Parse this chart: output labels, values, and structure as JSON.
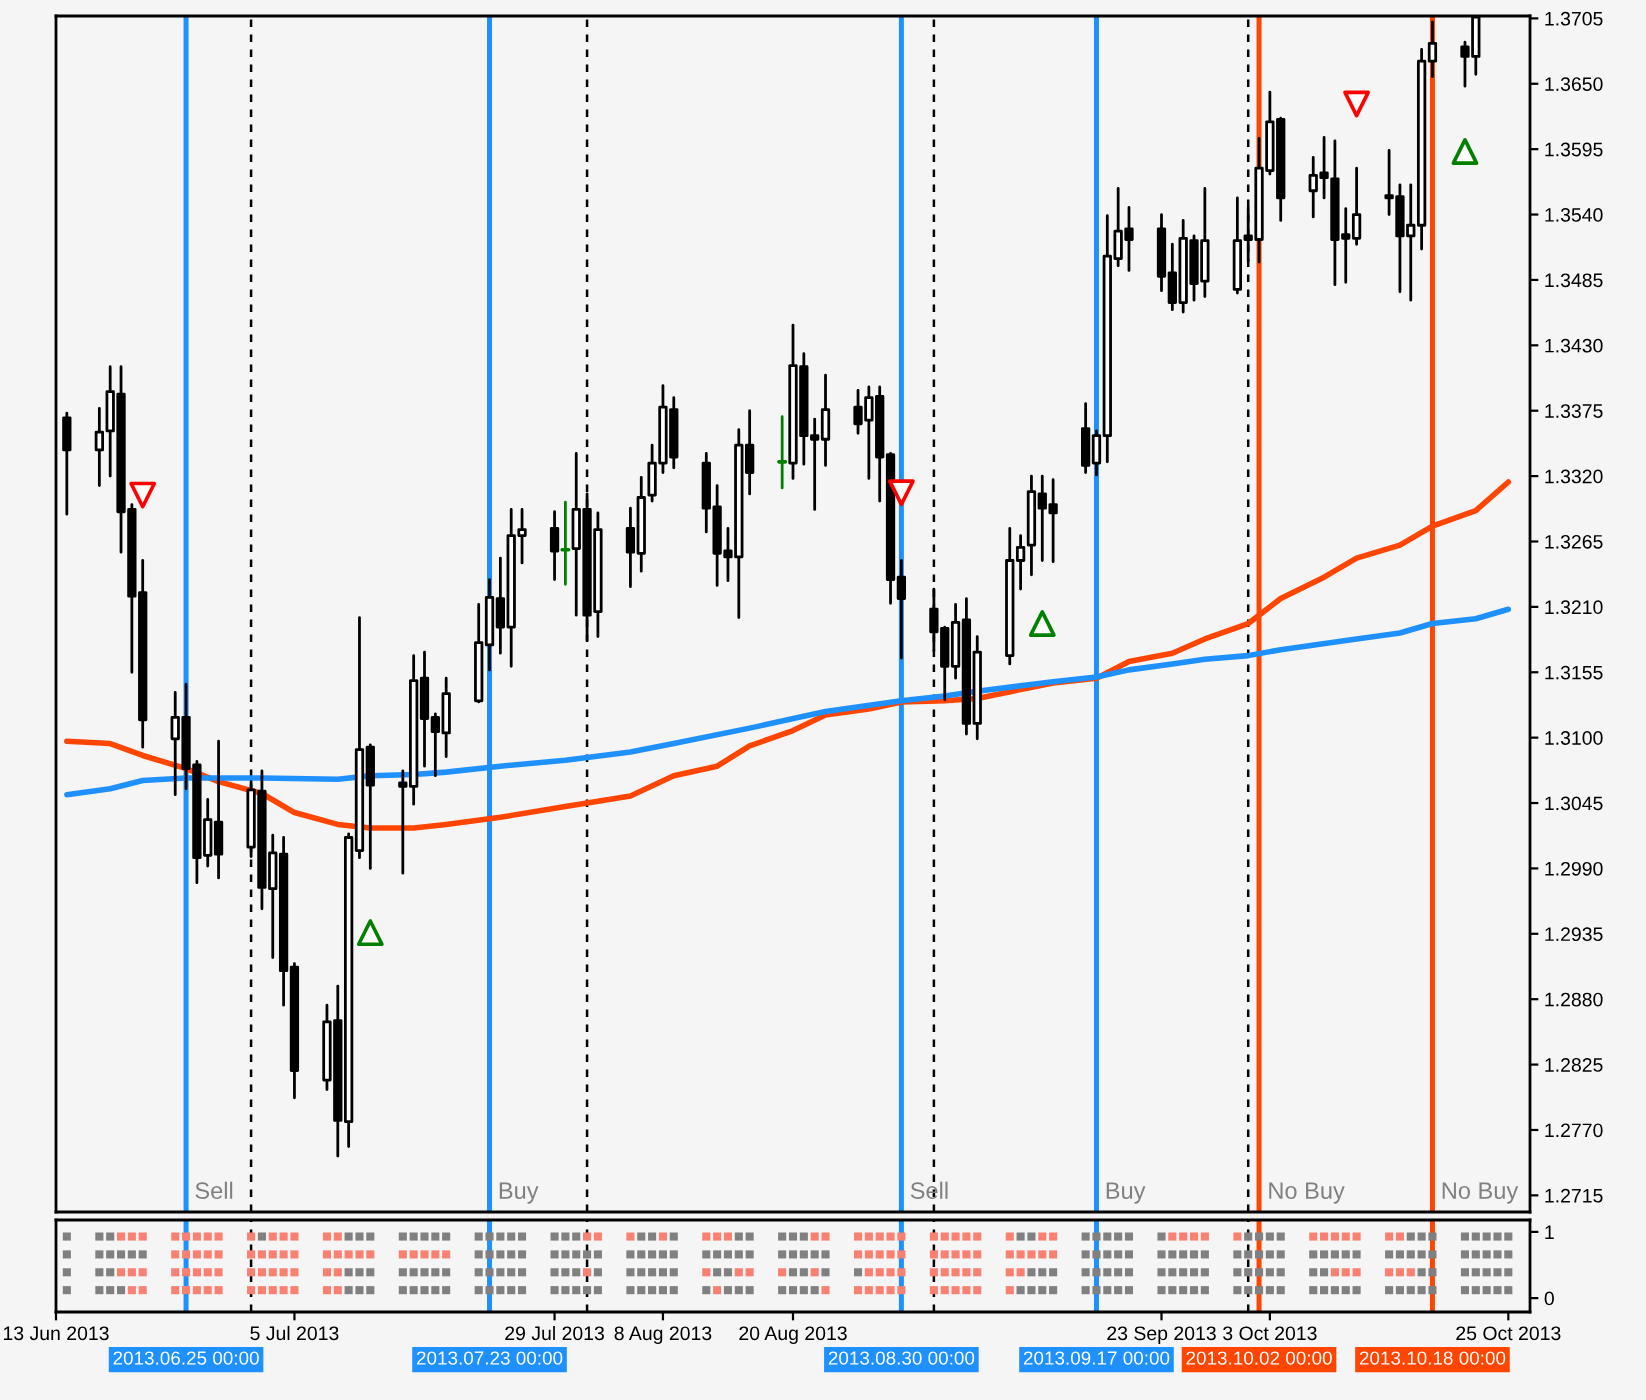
{
  "chart_data": [
    {
      "type": "candlestick",
      "tick_labels": "y",
      "xlim": [
        "2013-06-13",
        "2013-10-27"
      ],
      "ylim": [
        1.2701,
        1.3707
      ],
      "yticks": [
        1.2715,
        {
          "value": 1.277,
          "label": "1.2770"
        },
        1.2825,
        {
          "value": 1.288,
          "label": "1.2880"
        },
        1.2935,
        {
          "value": 1.299,
          "label": "1.2990"
        },
        1.3045,
        {
          "value": 1.31,
          "label": "1.3100"
        },
        1.3155,
        {
          "value": 1.321,
          "label": "1.3210"
        },
        1.3265,
        {
          "value": 1.332,
          "label": "1.3320"
        },
        1.3375,
        {
          "value": 1.343,
          "label": "1.3430"
        },
        1.3485,
        {
          "value": 1.354,
          "label": "1.3540"
        },
        1.3595,
        {
          "value": 1.365,
          "label": "1.3650"
        },
        1.3705
      ],
      "x": [
        "2013-06-14",
        "2013-06-17",
        "2013-06-18",
        "2013-06-19",
        "2013-06-20",
        "2013-06-21",
        "2013-06-24",
        "2013-06-25",
        "2013-06-26",
        "2013-06-27",
        "2013-06-28",
        "2013-07-01",
        "2013-07-02",
        "2013-07-03",
        "2013-07-04",
        "2013-07-05",
        "2013-07-08",
        "2013-07-09",
        "2013-07-10",
        "2013-07-11",
        "2013-07-12",
        "2013-07-15",
        "2013-07-16",
        "2013-07-17",
        "2013-07-18",
        "2013-07-19",
        "2013-07-22",
        "2013-07-23",
        "2013-07-24",
        "2013-07-25",
        "2013-07-26",
        "2013-07-29",
        "2013-07-30",
        "2013-07-31",
        "2013-08-01",
        "2013-08-02",
        "2013-08-05",
        "2013-08-06",
        "2013-08-07",
        "2013-08-08",
        "2013-08-09",
        "2013-08-12",
        "2013-08-13",
        "2013-08-14",
        "2013-08-15",
        "2013-08-16",
        "2013-08-19",
        "2013-08-20",
        "2013-08-21",
        "2013-08-22",
        "2013-08-23",
        "2013-08-26",
        "2013-08-27",
        "2013-08-28",
        "2013-08-29",
        "2013-08-30",
        "2013-09-02",
        "2013-09-03",
        "2013-09-04",
        "2013-09-05",
        "2013-09-06",
        "2013-09-09",
        "2013-09-10",
        "2013-09-11",
        "2013-09-12",
        "2013-09-13",
        "2013-09-16",
        "2013-09-17",
        "2013-09-18",
        "2013-09-19",
        "2013-09-20",
        "2013-09-23",
        "2013-09-24",
        "2013-09-25",
        "2013-09-26",
        "2013-09-27",
        "2013-09-30",
        "2013-10-01",
        "2013-10-02",
        "2013-10-03",
        "2013-10-04",
        "2013-10-07",
        "2013-10-08",
        "2013-10-09",
        "2013-10-10",
        "2013-10-11",
        "2013-10-14",
        "2013-10-15",
        "2013-10-16",
        "2013-10-17",
        "2013-10-18",
        "2013-10-21",
        "2013-10-22"
      ],
      "ohlc": [
        [
          1.3369,
          1.3373,
          1.3288,
          1.3342
        ],
        [
          1.3342,
          1.3377,
          1.3312,
          1.3357
        ],
        [
          1.3358,
          1.3412,
          1.332,
          1.3391
        ],
        [
          1.3389,
          1.3412,
          1.3256,
          1.329
        ],
        [
          1.3292,
          1.3296,
          1.3155,
          1.3219
        ],
        [
          1.3222,
          1.3249,
          1.3092,
          1.3115
        ],
        [
          1.3099,
          1.3138,
          1.3052,
          1.3117
        ],
        [
          1.3117,
          1.3145,
          1.3057,
          1.3074
        ],
        [
          1.3077,
          1.308,
          1.2978,
          1.2999
        ],
        [
          1.3001,
          1.3048,
          1.2992,
          1.3031
        ],
        [
          1.3029,
          1.3097,
          1.2982,
          1.3002
        ],
        [
          1.3008,
          1.3063,
          1.3,
          1.3056
        ],
        [
          1.3055,
          1.3072,
          1.2956,
          1.2974
        ],
        [
          1.2973,
          1.3018,
          1.2915,
          1.3003
        ],
        [
          1.3002,
          1.3016,
          1.2875,
          1.2904
        ],
        [
          1.2907,
          1.291,
          1.2797,
          1.282
        ],
        [
          1.2812,
          1.2875,
          1.2804,
          1.2861
        ],
        [
          1.2862,
          1.2891,
          1.2748,
          1.2778
        ],
        [
          1.2777,
          1.3019,
          1.2756,
          1.3016
        ],
        [
          1.3005,
          1.3201,
          1.2999,
          1.309
        ],
        [
          1.3092,
          1.3094,
          1.299,
          1.306
        ],
        [
          1.3062,
          1.3072,
          1.2986,
          1.3059
        ],
        [
          1.3059,
          1.3169,
          1.3044,
          1.3148
        ],
        [
          1.315,
          1.3172,
          1.3076,
          1.3116
        ],
        [
          1.3117,
          1.312,
          1.3068,
          1.3105
        ],
        [
          1.3104,
          1.315,
          1.3084,
          1.3137
        ],
        [
          1.3131,
          1.3212,
          1.313,
          1.318
        ],
        [
          1.3178,
          1.3233,
          1.3157,
          1.3218
        ],
        [
          1.3217,
          1.3251,
          1.3171,
          1.3193
        ],
        [
          1.3193,
          1.3292,
          1.316,
          1.327
        ],
        [
          1.327,
          1.3292,
          1.3247,
          1.3275
        ],
        [
          1.3276,
          1.329,
          1.3233,
          1.3257
        ],
        [
          1.3258,
          1.3298,
          1.3229,
          1.3258
        ],
        [
          1.3259,
          1.3339,
          1.3203,
          1.3292
        ],
        [
          1.3292,
          1.3305,
          1.3182,
          1.3203
        ],
        [
          1.3206,
          1.3289,
          1.3185,
          1.3275
        ],
        [
          1.3276,
          1.3293,
          1.3227,
          1.3256
        ],
        [
          1.3255,
          1.3319,
          1.324,
          1.3302
        ],
        [
          1.3304,
          1.3346,
          1.3299,
          1.3331
        ],
        [
          1.3331,
          1.3396,
          1.3323,
          1.3378
        ],
        [
          1.3376,
          1.3386,
          1.3327,
          1.3336
        ],
        [
          1.3331,
          1.3339,
          1.3273,
          1.3293
        ],
        [
          1.3294,
          1.3312,
          1.3228,
          1.3255
        ],
        [
          1.3257,
          1.3276,
          1.3232,
          1.3252
        ],
        [
          1.3252,
          1.3359,
          1.3201,
          1.3346
        ],
        [
          1.3346,
          1.3375,
          1.3305,
          1.3323
        ],
        [
          1.3332,
          1.337,
          1.331,
          1.3332
        ],
        [
          1.3331,
          1.3447,
          1.3318,
          1.3413
        ],
        [
          1.3412,
          1.3423,
          1.333,
          1.3354
        ],
        [
          1.3354,
          1.3368,
          1.3292,
          1.3351
        ],
        [
          1.3351,
          1.3405,
          1.3329,
          1.3376
        ],
        [
          1.3378,
          1.3392,
          1.3356,
          1.3364
        ],
        [
          1.3367,
          1.3395,
          1.3318,
          1.3386
        ],
        [
          1.3387,
          1.3395,
          1.3299,
          1.3336
        ],
        [
          1.3338,
          1.3339,
          1.3213,
          1.3233
        ],
        [
          1.3235,
          1.3249,
          1.3167,
          1.3217
        ],
        [
          1.3208,
          1.3225,
          1.3173,
          1.3189
        ],
        [
          1.3192,
          1.3193,
          1.3132,
          1.316
        ],
        [
          1.316,
          1.3212,
          1.315,
          1.3197
        ],
        [
          1.3199,
          1.3217,
          1.3103,
          1.3112
        ],
        [
          1.3112,
          1.3185,
          1.3099,
          1.3172
        ],
        [
          1.3169,
          1.3276,
          1.3162,
          1.3249
        ],
        [
          1.3249,
          1.327,
          1.3225,
          1.326
        ],
        [
          1.3262,
          1.332,
          1.3237,
          1.3307
        ],
        [
          1.3305,
          1.332,
          1.3249,
          1.3293
        ],
        [
          1.3296,
          1.3317,
          1.3248,
          1.3289
        ],
        [
          1.336,
          1.3381,
          1.3323,
          1.3329
        ],
        [
          1.3331,
          1.3358,
          1.3321,
          1.3354
        ],
        [
          1.3354,
          1.3539,
          1.3332,
          1.3505
        ],
        [
          1.3503,
          1.3562,
          1.3497,
          1.3526
        ],
        [
          1.3528,
          1.3546,
          1.3493,
          1.3519
        ],
        [
          1.3528,
          1.354,
          1.3476,
          1.3488
        ],
        [
          1.3491,
          1.3515,
          1.346,
          1.3466
        ],
        [
          1.3466,
          1.3535,
          1.3458,
          1.352
        ],
        [
          1.3518,
          1.3522,
          1.3468,
          1.3482
        ],
        [
          1.3484,
          1.3562,
          1.3471,
          1.3518
        ],
        [
          1.3477,
          1.3554,
          1.3474,
          1.3518
        ],
        [
          1.3522,
          1.3546,
          1.3501,
          1.3519
        ],
        [
          1.3519,
          1.3604,
          1.35,
          1.3579
        ],
        [
          1.3577,
          1.3643,
          1.3574,
          1.3618
        ],
        [
          1.362,
          1.3621,
          1.3535,
          1.3554
        ],
        [
          1.356,
          1.3588,
          1.3538,
          1.3573
        ],
        [
          1.3575,
          1.3605,
          1.3554,
          1.3571
        ],
        [
          1.357,
          1.3602,
          1.3481,
          1.3519
        ],
        [
          1.3523,
          1.3545,
          1.3483,
          1.352
        ],
        [
          1.352,
          1.3579,
          1.3515,
          1.354
        ],
        [
          1.3556,
          1.3594,
          1.354,
          1.3554
        ],
        [
          1.3555,
          1.3565,
          1.3475,
          1.3522
        ],
        [
          1.3522,
          1.3565,
          1.3468,
          1.3531
        ],
        [
          1.3531,
          1.3679,
          1.3511,
          1.3669
        ],
        [
          1.3669,
          1.3702,
          1.3656,
          1.3684
        ],
        [
          1.3681,
          1.3685,
          1.3648,
          1.3673
        ],
        [
          1.3673,
          1.3707,
          1.3658,
          1.3706
        ]
      ],
      "colors": [
        "#000000",
        "#ffffff",
        "#ffffff",
        "#000000",
        "#000000",
        "#000000",
        "#ffffff",
        "#000000",
        "#000000",
        "#ffffff",
        "#000000",
        "#ffffff",
        "#000000",
        "#ffffff",
        "#000000",
        "#000000",
        "#ffffff",
        "#000000",
        "#ffffff",
        "#ffffff",
        "#000000",
        "#000000",
        "#ffffff",
        "#000000",
        "#000000",
        "#ffffff",
        "#ffffff",
        "#ffffff",
        "#000000",
        "#ffffff",
        "#ffffff",
        "#000000",
        "#008000",
        "#ffffff",
        "#000000",
        "#ffffff",
        "#000000",
        "#ffffff",
        "#ffffff",
        "#ffffff",
        "#000000",
        "#000000",
        "#000000",
        "#000000",
        "#ffffff",
        "#000000",
        "#008000",
        "#ffffff",
        "#000000",
        "#000000",
        "#ffffff",
        "#000000",
        "#ffffff",
        "#000000",
        "#000000",
        "#000000",
        "#000000",
        "#000000",
        "#ffffff",
        "#000000",
        "#ffffff",
        "#ffffff",
        "#ffffff",
        "#ffffff",
        "#000000",
        "#000000",
        "#000000",
        "#ffffff",
        "#ffffff",
        "#ffffff",
        "#000000",
        "#000000",
        "#000000",
        "#ffffff",
        "#000000",
        "#ffffff",
        "#ffffff",
        "#000000",
        "#ffffff",
        "#ffffff",
        "#000000",
        "#ffffff",
        "#000000",
        "#000000",
        "#000000",
        "#ffffff",
        "#000000",
        "#000000",
        "#ffffff",
        "#ffffff",
        "#ffffff",
        "#000000",
        "#ffffff"
      ],
      "series": [
        {
          "type": "line",
          "color": "#ff4500",
          "x": [
            "2013-06-14",
            "2013-06-18",
            "2013-06-21",
            "2013-06-25",
            "2013-06-28",
            "2013-07-02",
            "2013-07-05",
            "2013-07-09",
            "2013-07-12",
            "2013-07-16",
            "2013-07-19",
            "2013-07-24",
            "2013-07-30",
            "2013-08-05",
            "2013-08-09",
            "2013-08-13",
            "2013-08-16",
            "2013-08-20",
            "2013-08-23",
            "2013-08-27",
            "2013-08-30",
            "2013-09-03",
            "2013-09-06",
            "2013-09-13",
            "2013-09-17",
            "2013-09-20",
            "2013-09-24",
            "2013-09-27",
            "2013-10-01",
            "2013-10-04",
            "2013-10-08",
            "2013-10-11",
            "2013-10-15",
            "2013-10-18",
            "2013-10-22",
            "2013-10-25"
          ],
          "values": [
            1.3097,
            1.3095,
            1.3085,
            1.3074,
            1.3063,
            1.3053,
            1.3037,
            1.3027,
            1.3024,
            1.3024,
            1.3027,
            1.3033,
            1.3042,
            1.3051,
            1.3068,
            1.3076,
            1.3093,
            1.3106,
            1.3119,
            1.3124,
            1.313,
            1.3131,
            1.3133,
            1.3146,
            1.315,
            1.3164,
            1.3171,
            1.3183,
            1.3196,
            1.3217,
            1.3235,
            1.3251,
            1.3262,
            1.3278,
            1.3291,
            1.3315
          ]
        },
        {
          "type": "line",
          "color": "#1e90ff",
          "x": [
            "2013-06-14",
            "2013-06-18",
            "2013-06-21",
            "2013-06-25",
            "2013-07-02",
            "2013-07-09",
            "2013-07-12",
            "2013-07-16",
            "2013-07-19",
            "2013-07-24",
            "2013-07-30",
            "2013-08-05",
            "2013-08-09",
            "2013-08-16",
            "2013-08-23",
            "2013-08-30",
            "2013-09-03",
            "2013-09-06",
            "2013-09-13",
            "2013-09-17",
            "2013-09-20",
            "2013-09-24",
            "2013-09-27",
            "2013-10-01",
            "2013-10-04",
            "2013-10-11",
            "2013-10-15",
            "2013-10-18",
            "2013-10-22",
            "2013-10-25"
          ],
          "values": [
            1.3052,
            1.3057,
            1.3064,
            1.3066,
            1.3066,
            1.3065,
            1.3068,
            1.3069,
            1.3071,
            1.3076,
            1.3081,
            1.3088,
            1.3095,
            1.3108,
            1.3122,
            1.3131,
            1.3135,
            1.3139,
            1.3147,
            1.3151,
            1.3157,
            1.3162,
            1.3166,
            1.3169,
            1.3174,
            1.3183,
            1.3188,
            1.3196,
            1.32,
            1.3208
          ]
        },
        {
          "type": "scatter",
          "marker": "triangle",
          "color": "#ff0000",
          "x": [
            "2013-06-21",
            "2013-08-30",
            "2013-10-11"
          ],
          "values": [
            1.3304,
            1.3306,
            1.3633
          ]
        },
        {
          "type": "scatter",
          "marker": "triangle",
          "color": "#008000",
          "x": [
            "2013-07-12",
            "2013-09-12",
            "2013-10-21"
          ],
          "values": [
            1.2936,
            1.3196,
            1.3593
          ]
        }
      ],
      "ref_lines": [
        {
          "axis": "x",
          "value": "2013-06-25",
          "label": "Sell",
          "color": "#1e90ff"
        },
        {
          "axis": "x",
          "value": "2013-07-23",
          "label": "Buy",
          "color": "#1e90ff"
        },
        {
          "axis": "x",
          "value": "2013-08-30",
          "label": "Sell",
          "color": "#1e90ff"
        },
        {
          "axis": "x",
          "value": "2013-09-17",
          "label": "Buy",
          "color": "#1e90ff"
        },
        {
          "axis": "x",
          "value": "2013-10-02",
          "label": "No Buy",
          "color": "#ff4500"
        },
        {
          "axis": "x",
          "value": "2013-10-18",
          "label": "No Buy",
          "color": "#ff4500"
        },
        {
          "axis": "x",
          "value": "2013-07-01",
          "color": "#000000",
          "line_style": "dashed"
        },
        {
          "axis": "x",
          "value": "2013-08-01",
          "color": "#000000",
          "line_style": "dashed"
        },
        {
          "axis": "x",
          "value": "2013-09-02",
          "color": "#000000",
          "line_style": "dashed"
        },
        {
          "axis": "x",
          "value": "2013-10-01",
          "color": "#000000",
          "line_style": "dashed"
        }
      ]
    },
    {
      "type": "scatter",
      "marker": "square",
      "xlim": [
        "2013-06-13",
        "2013-10-27"
      ],
      "ylim": [
        -0.21,
        1.18
      ],
      "yticks": [
        0,
        1
      ],
      "xticks": [
        {
          "value": "2013-06-13",
          "label": "13 Jun 2013"
        },
        {
          "value": "2013-07-05",
          "label": "5 Jul 2013"
        },
        {
          "value": "2013-07-29",
          "label": "29 Jul 2013"
        },
        {
          "value": "2013-08-08",
          "label": "8 Aug 2013"
        },
        {
          "value": "2013-08-20",
          "label": "20 Aug 2013"
        },
        {
          "value": "2013-09-23",
          "label": "23 Sep 2013"
        },
        {
          "value": "2013-10-03",
          "label": "3 Oct 2013"
        },
        {
          "value": "2013-10-25",
          "label": "25 Oct 2013"
        }
      ],
      "x": [
        "2013-06-14",
        "2013-06-17",
        "2013-06-18",
        "2013-06-19",
        "2013-06-20",
        "2013-06-21",
        "2013-06-24",
        "2013-06-25",
        "2013-06-26",
        "2013-06-27",
        "2013-06-28",
        "2013-07-01",
        "2013-07-02",
        "2013-07-03",
        "2013-07-04",
        "2013-07-05",
        "2013-07-08",
        "2013-07-09",
        "2013-07-10",
        "2013-07-11",
        "2013-07-12",
        "2013-07-15",
        "2013-07-16",
        "2013-07-17",
        "2013-07-18",
        "2013-07-19",
        "2013-07-22",
        "2013-07-23",
        "2013-07-24",
        "2013-07-25",
        "2013-07-26",
        "2013-07-29",
        "2013-07-30",
        "2013-07-31",
        "2013-08-01",
        "2013-08-02",
        "2013-08-05",
        "2013-08-06",
        "2013-08-07",
        "2013-08-08",
        "2013-08-09",
        "2013-08-12",
        "2013-08-13",
        "2013-08-14",
        "2013-08-15",
        "2013-08-16",
        "2013-08-19",
        "2013-08-20",
        "2013-08-21",
        "2013-08-22",
        "2013-08-23",
        "2013-08-26",
        "2013-08-27",
        "2013-08-28",
        "2013-08-29",
        "2013-08-30",
        "2013-09-02",
        "2013-09-03",
        "2013-09-04",
        "2013-09-05",
        "2013-09-06",
        "2013-09-09",
        "2013-09-10",
        "2013-09-11",
        "2013-09-12",
        "2013-09-13",
        "2013-09-16",
        "2013-09-17",
        "2013-09-18",
        "2013-09-19",
        "2013-09-20",
        "2013-09-23",
        "2013-09-24",
        "2013-09-25",
        "2013-09-26",
        "2013-09-27",
        "2013-09-30",
        "2013-10-01",
        "2013-10-02",
        "2013-10-03",
        "2013-10-04",
        "2013-10-07",
        "2013-10-08",
        "2013-10-09",
        "2013-10-10",
        "2013-10-11",
        "2013-10-14",
        "2013-10-15",
        "2013-10-16",
        "2013-10-17",
        "2013-10-18",
        "2013-10-21",
        "2013-10-22",
        "2013-10-23",
        "2013-10-24",
        "2013-10-25"
      ],
      "series": [
        {
          "values": [
            0.93,
            0.93,
            0.93,
            0.93,
            0.93,
            0.93,
            0.93,
            0.93,
            0.93,
            0.93,
            0.93,
            0.93,
            0.93,
            0.93,
            0.93,
            0.93,
            0.93,
            0.93,
            0.93,
            0.93,
            0.93,
            0.93,
            0.93,
            0.93,
            0.93,
            0.93,
            0.93,
            0.93,
            0.93,
            0.93,
            0.93,
            0.93,
            0.93,
            0.93,
            0.93,
            0.93,
            0.93,
            0.93,
            0.93,
            0.93,
            0.93,
            0.93,
            0.93,
            0.93,
            0.93,
            0.93,
            0.93,
            0.93,
            0.93,
            0.93,
            0.93,
            0.93,
            0.93,
            0.93,
            0.93,
            0.93,
            0.93,
            0.93,
            0.93,
            0.93,
            0.93,
            0.93,
            0.93,
            0.93,
            0.93,
            0.93,
            0.93,
            0.93,
            0.93,
            0.93,
            0.93,
            0.93,
            0.93,
            0.93,
            0.93,
            0.93,
            0.93,
            0.93,
            0.93,
            0.93,
            0.93,
            0.93,
            0.93,
            0.93,
            0.93,
            0.93,
            0.93,
            0.93,
            0.93,
            0.93,
            0.93,
            0.93,
            0.93,
            0.93,
            0.93,
            0.93
          ],
          "colors": [
            "#808080",
            "#808080",
            "#808080",
            "#fa8072",
            "#fa8072",
            "#fa8072",
            "#fa8072",
            "#fa8072",
            "#fa8072",
            "#fa8072",
            "#fa8072",
            "#fa8072",
            "#808080",
            "#fa8072",
            "#fa8072",
            "#fa8072",
            "#fa8072",
            "#fa8072",
            "#808080",
            "#808080",
            "#808080",
            "#808080",
            "#808080",
            "#808080",
            "#808080",
            "#808080",
            "#808080",
            "#808080",
            "#808080",
            "#808080",
            "#808080",
            "#808080",
            "#808080",
            "#808080",
            "#fa8072",
            "#fa8072",
            "#fa8072",
            "#808080",
            "#808080",
            "#fa8072",
            "#808080",
            "#fa8072",
            "#fa8072",
            "#fa8072",
            "#808080",
            "#808080",
            "#808080",
            "#808080",
            "#808080",
            "#fa8072",
            "#fa8072",
            "#fa8072",
            "#fa8072",
            "#fa8072",
            "#fa8072",
            "#fa8072",
            "#fa8072",
            "#fa8072",
            "#fa8072",
            "#fa8072",
            "#fa8072",
            "#fa8072",
            "#808080",
            "#808080",
            "#fa8072",
            "#fa8072",
            "#808080",
            "#808080",
            "#808080",
            "#808080",
            "#808080",
            "#808080",
            "#fa8072",
            "#fa8072",
            "#fa8072",
            "#fa8072",
            "#fa8072",
            "#808080",
            "#808080",
            "#808080",
            "#808080",
            "#fa8072",
            "#fa8072",
            "#fa8072",
            "#fa8072",
            "#fa8072",
            "#fa8072",
            "#fa8072",
            "#808080",
            "#808080",
            "#808080",
            "#808080",
            "#808080",
            "#808080",
            "#808080",
            "#808080"
          ]
        },
        {
          "values": [
            0.66,
            0.66,
            0.66,
            0.66,
            0.66,
            0.66,
            0.66,
            0.66,
            0.66,
            0.66,
            0.66,
            0.66,
            0.66,
            0.66,
            0.66,
            0.66,
            0.66,
            0.66,
            0.66,
            0.66,
            0.66,
            0.66,
            0.66,
            0.66,
            0.66,
            0.66,
            0.66,
            0.66,
            0.66,
            0.66,
            0.66,
            0.66,
            0.66,
            0.66,
            0.66,
            0.66,
            0.66,
            0.66,
            0.66,
            0.66,
            0.66,
            0.66,
            0.66,
            0.66,
            0.66,
            0.66,
            0.66,
            0.66,
            0.66,
            0.66,
            0.66,
            0.66,
            0.66,
            0.66,
            0.66,
            0.66,
            0.66,
            0.66,
            0.66,
            0.66,
            0.66,
            0.66,
            0.66,
            0.66,
            0.66,
            0.66,
            0.66,
            0.66,
            0.66,
            0.66,
            0.66,
            0.66,
            0.66,
            0.66,
            0.66,
            0.66,
            0.66,
            0.66,
            0.66,
            0.66,
            0.66,
            0.66,
            0.66,
            0.66,
            0.66,
            0.66,
            0.66,
            0.66,
            0.66,
            0.66,
            0.66,
            0.66,
            0.66,
            0.66,
            0.66,
            0.66
          ],
          "colors": [
            "#808080",
            "#808080",
            "#808080",
            "#808080",
            "#808080",
            "#808080",
            "#fa8072",
            "#fa8072",
            "#fa8072",
            "#fa8072",
            "#fa8072",
            "#fa8072",
            "#fa8072",
            "#fa8072",
            "#fa8072",
            "#fa8072",
            "#fa8072",
            "#fa8072",
            "#fa8072",
            "#fa8072",
            "#fa8072",
            "#fa8072",
            "#fa8072",
            "#fa8072",
            "#fa8072",
            "#fa8072",
            "#808080",
            "#808080",
            "#808080",
            "#808080",
            "#808080",
            "#808080",
            "#808080",
            "#808080",
            "#808080",
            "#808080",
            "#808080",
            "#808080",
            "#808080",
            "#808080",
            "#808080",
            "#808080",
            "#808080",
            "#808080",
            "#808080",
            "#808080",
            "#808080",
            "#808080",
            "#808080",
            "#808080",
            "#808080",
            "#fa8072",
            "#fa8072",
            "#fa8072",
            "#fa8072",
            "#fa8072",
            "#fa8072",
            "#fa8072",
            "#fa8072",
            "#fa8072",
            "#fa8072",
            "#fa8072",
            "#fa8072",
            "#fa8072",
            "#fa8072",
            "#fa8072",
            "#808080",
            "#808080",
            "#808080",
            "#808080",
            "#808080",
            "#808080",
            "#808080",
            "#808080",
            "#808080",
            "#808080",
            "#808080",
            "#808080",
            "#808080",
            "#808080",
            "#808080",
            "#808080",
            "#808080",
            "#808080",
            "#808080",
            "#808080",
            "#808080",
            "#808080",
            "#808080",
            "#808080",
            "#808080",
            "#808080",
            "#808080",
            "#808080",
            "#808080",
            "#808080"
          ]
        },
        {
          "values": [
            0.39,
            0.39,
            0.39,
            0.39,
            0.39,
            0.39,
            0.39,
            0.39,
            0.39,
            0.39,
            0.39,
            0.39,
            0.39,
            0.39,
            0.39,
            0.39,
            0.39,
            0.39,
            0.39,
            0.39,
            0.39,
            0.39,
            0.39,
            0.39,
            0.39,
            0.39,
            0.39,
            0.39,
            0.39,
            0.39,
            0.39,
            0.39,
            0.39,
            0.39,
            0.39,
            0.39,
            0.39,
            0.39,
            0.39,
            0.39,
            0.39,
            0.39,
            0.39,
            0.39,
            0.39,
            0.39,
            0.39,
            0.39,
            0.39,
            0.39,
            0.39,
            0.39,
            0.39,
            0.39,
            0.39,
            0.39,
            0.39,
            0.39,
            0.39,
            0.39,
            0.39,
            0.39,
            0.39,
            0.39,
            0.39,
            0.39,
            0.39,
            0.39,
            0.39,
            0.39,
            0.39,
            0.39,
            0.39,
            0.39,
            0.39,
            0.39,
            0.39,
            0.39,
            0.39,
            0.39,
            0.39,
            0.39,
            0.39,
            0.39,
            0.39,
            0.39,
            0.39,
            0.39,
            0.39,
            0.39,
            0.39,
            0.39,
            0.39,
            0.39,
            0.39,
            0.39
          ],
          "colors": [
            "#808080",
            "#808080",
            "#808080",
            "#fa8072",
            "#fa8072",
            "#fa8072",
            "#fa8072",
            "#fa8072",
            "#fa8072",
            "#fa8072",
            "#fa8072",
            "#fa8072",
            "#fa8072",
            "#fa8072",
            "#fa8072",
            "#fa8072",
            "#fa8072",
            "#fa8072",
            "#808080",
            "#808080",
            "#808080",
            "#808080",
            "#808080",
            "#808080",
            "#808080",
            "#808080",
            "#808080",
            "#808080",
            "#808080",
            "#808080",
            "#808080",
            "#808080",
            "#808080",
            "#808080",
            "#fa8072",
            "#808080",
            "#808080",
            "#808080",
            "#808080",
            "#808080",
            "#808080",
            "#fa8072",
            "#808080",
            "#808080",
            "#fa8072",
            "#fa8072",
            "#fa8072",
            "#808080",
            "#808080",
            "#fa8072",
            "#808080",
            "#808080",
            "#fa8072",
            "#fa8072",
            "#fa8072",
            "#fa8072",
            "#fa8072",
            "#fa8072",
            "#fa8072",
            "#fa8072",
            "#fa8072",
            "#fa8072",
            "#fa8072",
            "#808080",
            "#808080",
            "#808080",
            "#808080",
            "#808080",
            "#808080",
            "#808080",
            "#808080",
            "#808080",
            "#808080",
            "#808080",
            "#808080",
            "#808080",
            "#808080",
            "#808080",
            "#808080",
            "#808080",
            "#808080",
            "#808080",
            "#808080",
            "#fa8072",
            "#fa8072",
            "#fa8072",
            "#fa8072",
            "#fa8072",
            "#fa8072",
            "#808080",
            "#808080",
            "#808080",
            "#808080",
            "#808080",
            "#808080",
            "#808080"
          ]
        },
        {
          "values": [
            0.12,
            0.12,
            0.12,
            0.12,
            0.12,
            0.12,
            0.12,
            0.12,
            0.12,
            0.12,
            0.12,
            0.12,
            0.12,
            0.12,
            0.12,
            0.12,
            0.12,
            0.12,
            0.12,
            0.12,
            0.12,
            0.12,
            0.12,
            0.12,
            0.12,
            0.12,
            0.12,
            0.12,
            0.12,
            0.12,
            0.12,
            0.12,
            0.12,
            0.12,
            0.12,
            0.12,
            0.12,
            0.12,
            0.12,
            0.12,
            0.12,
            0.12,
            0.12,
            0.12,
            0.12,
            0.12,
            0.12,
            0.12,
            0.12,
            0.12,
            0.12,
            0.12,
            0.12,
            0.12,
            0.12,
            0.12,
            0.12,
            0.12,
            0.12,
            0.12,
            0.12,
            0.12,
            0.12,
            0.12,
            0.12,
            0.12,
            0.12,
            0.12,
            0.12,
            0.12,
            0.12,
            0.12,
            0.12,
            0.12,
            0.12,
            0.12,
            0.12,
            0.12,
            0.12,
            0.12,
            0.12,
            0.12,
            0.12,
            0.12,
            0.12,
            0.12,
            0.12,
            0.12,
            0.12,
            0.12,
            0.12,
            0.12,
            0.12,
            0.12,
            0.12,
            0.12
          ],
          "colors": [
            "#808080",
            "#808080",
            "#808080",
            "#808080",
            "#fa8072",
            "#fa8072",
            "#fa8072",
            "#fa8072",
            "#fa8072",
            "#fa8072",
            "#fa8072",
            "#fa8072",
            "#fa8072",
            "#fa8072",
            "#fa8072",
            "#fa8072",
            "#fa8072",
            "#fa8072",
            "#808080",
            "#808080",
            "#808080",
            "#808080",
            "#808080",
            "#808080",
            "#808080",
            "#808080",
            "#808080",
            "#808080",
            "#808080",
            "#808080",
            "#808080",
            "#808080",
            "#808080",
            "#808080",
            "#808080",
            "#808080",
            "#808080",
            "#808080",
            "#808080",
            "#808080",
            "#808080",
            "#808080",
            "#fa8072",
            "#808080",
            "#808080",
            "#808080",
            "#808080",
            "#808080",
            "#808080",
            "#808080",
            "#fa8072",
            "#fa8072",
            "#fa8072",
            "#fa8072",
            "#fa8072",
            "#fa8072",
            "#fa8072",
            "#fa8072",
            "#fa8072",
            "#fa8072",
            "#fa8072",
            "#fa8072",
            "#808080",
            "#808080",
            "#808080",
            "#808080",
            "#808080",
            "#808080",
            "#808080",
            "#808080",
            "#808080",
            "#808080",
            "#808080",
            "#808080",
            "#808080",
            "#808080",
            "#808080",
            "#808080",
            "#808080",
            "#808080",
            "#808080",
            "#808080",
            "#808080",
            "#808080",
            "#808080",
            "#808080",
            "#808080",
            "#808080",
            "#808080",
            "#808080",
            "#808080",
            "#808080",
            "#808080",
            "#808080",
            "#808080",
            "#808080"
          ]
        }
      ],
      "ref_lines": [
        {
          "axis": "x",
          "value": "2013-06-25",
          "label": "2013.06.25 00:00",
          "color": "#1e90ff"
        },
        {
          "axis": "x",
          "value": "2013-07-23",
          "label": "2013.07.23 00:00",
          "color": "#1e90ff"
        },
        {
          "axis": "x",
          "value": "2013-08-30",
          "label": "2013.08.30 00:00",
          "color": "#1e90ff"
        },
        {
          "axis": "x",
          "value": "2013-09-17",
          "label": "2013.09.17 00:00",
          "color": "#1e90ff"
        },
        {
          "axis": "x",
          "value": "2013-10-02",
          "label": "2013.10.02 00:00",
          "color": "#ff4500"
        },
        {
          "axis": "x",
          "value": "2013-10-18",
          "label": "2013.10.18 00:00",
          "color": "#ff4500"
        },
        {
          "axis": "x",
          "value": "2013-07-01",
          "color": "#000000",
          "line_style": "dashed"
        },
        {
          "axis": "x",
          "value": "2013-08-01",
          "color": "#000000",
          "line_style": "dashed"
        },
        {
          "axis": "x",
          "value": "2013-09-02",
          "color": "#000000",
          "line_style": "dashed"
        },
        {
          "axis": "x",
          "value": "2013-10-01",
          "color": "#000000",
          "line_style": "dashed"
        }
      ]
    }
  ]
}
